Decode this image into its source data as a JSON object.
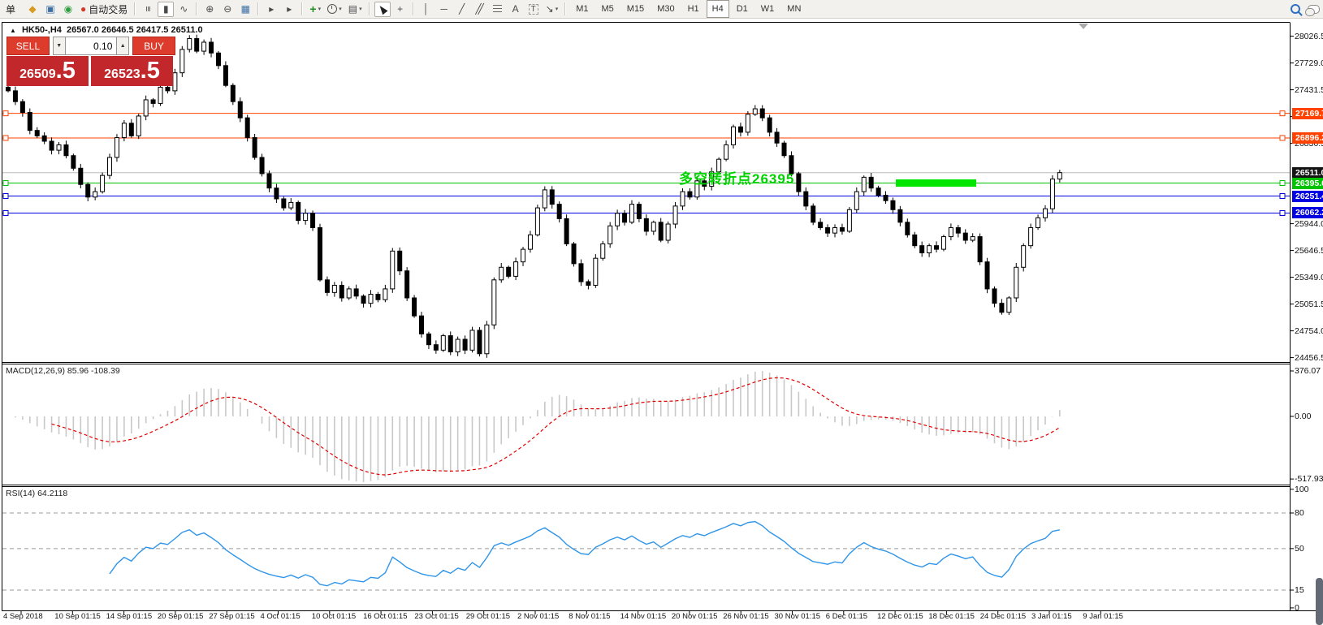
{
  "toolbar": {
    "menu_fragment": "单",
    "auto_trading": "自动交易",
    "timeframes": [
      "M1",
      "M5",
      "M15",
      "M30",
      "H1",
      "H4",
      "D1",
      "W1",
      "MN"
    ],
    "active_timeframe": "H4",
    "items": [
      {
        "name": "menu-fragment",
        "kind": "text",
        "text_key": "menu_fragment"
      },
      {
        "name": "new-order-icon",
        "glyph": "◆",
        "color": "#d79b23"
      },
      {
        "name": "chart-window-icon",
        "glyph": "▣",
        "color": "#3a6ea5"
      },
      {
        "name": "signals-icon",
        "glyph": "◉",
        "color": "#2e9e3f"
      },
      {
        "name": "auto-trading-button",
        "glyph": "●",
        "color": "#d03a2c",
        "label_key": "auto_trading"
      },
      {
        "kind": "sep"
      },
      {
        "name": "bar-chart-icon",
        "glyph": "≡",
        "cls": "rot90"
      },
      {
        "name": "candlestick-chart-icon",
        "glyph": "▮",
        "pressed": true
      },
      {
        "name": "line-chart-icon",
        "glyph": "∿"
      },
      {
        "kind": "sep"
      },
      {
        "name": "zoom-in-icon",
        "glyph": "⊕"
      },
      {
        "name": "zoom-out-icon",
        "glyph": "⊖"
      },
      {
        "name": "tile-windows-icon",
        "glyph": "▦",
        "color": "#3a6ea5"
      },
      {
        "kind": "sep"
      },
      {
        "name": "auto-scroll-icon",
        "glyph": "▸"
      },
      {
        "name": "chart-shift-icon",
        "glyph": "▸"
      },
      {
        "kind": "sep"
      },
      {
        "name": "indicators-button",
        "glyph": "+",
        "color": "#1e8e1e",
        "bold": true,
        "caret": true
      },
      {
        "name": "periods-button",
        "cls": "clockic",
        "caret": true
      },
      {
        "name": "templates-button",
        "glyph": "▤",
        "caret": true
      },
      {
        "kind": "sep"
      },
      {
        "name": "cursor-icon",
        "cls": "cursor-css",
        "pressed": true
      },
      {
        "name": "crosshair-icon",
        "glyph": "+"
      },
      {
        "kind": "sep"
      },
      {
        "name": "vertical-line-tool",
        "glyph": "│"
      },
      {
        "name": "horizontal-line-tool",
        "glyph": "─"
      },
      {
        "name": "trendline-tool",
        "glyph": "╱"
      },
      {
        "name": "channel-tool",
        "glyph": "╱╱",
        "cls": "tight"
      },
      {
        "name": "fibonacci-tool",
        "cls": "fibo"
      },
      {
        "name": "text-tool",
        "glyph": "A"
      },
      {
        "name": "label-tool",
        "glyph": "T",
        "cls": "boxed"
      },
      {
        "name": "arrows-tool",
        "glyph": "↘",
        "caret": true
      },
      {
        "kind": "sep"
      },
      {
        "kind": "timeframes"
      },
      {
        "kind": "spacer"
      },
      {
        "name": "search-icon",
        "cls": "mag"
      },
      {
        "name": "chat-icon",
        "cls": "chat"
      }
    ]
  },
  "chart_header": {
    "symbol": "HK50-,H4",
    "ohlc": "26567.0 26646.5 26417.5 26511.0"
  },
  "trade_panel": {
    "sell_label": "SELL",
    "buy_label": "BUY",
    "volume": "0.10",
    "sell_main": "26509",
    "sell_big": ".5",
    "buy_main": "26523",
    "buy_big": ".5"
  },
  "annotation": {
    "text": "多空转折点26395",
    "color": "#00d300",
    "bar_color": "#00e600"
  },
  "price_axis": {
    "ticks": [
      {
        "label": "28026.5",
        "price": 28026.5
      },
      {
        "label": "27729.0",
        "price": 27729.0
      },
      {
        "label": "27431.5",
        "price": 27431.5
      },
      {
        "label": "27134.0",
        "price": 27134.0
      },
      {
        "label": "26836.5",
        "price": 26836.5
      },
      {
        "label": "25944.0",
        "price": 25944.0
      },
      {
        "label": "25646.5",
        "price": 25646.5
      },
      {
        "label": "25349.0",
        "price": 25349.0
      },
      {
        "label": "25051.5",
        "price": 25051.5
      },
      {
        "label": "24754.0",
        "price": 24754.0
      },
      {
        "label": "24456.5",
        "price": 24456.5
      }
    ],
    "badges": [
      {
        "label": "27169.7",
        "price": 27169.7,
        "bg": "#ff4200",
        "line": "#ff4200",
        "anchors": true,
        "role": "resistance-line"
      },
      {
        "label": "26896.2",
        "price": 26896.2,
        "bg": "#ff4200",
        "line": "#ff4200",
        "anchors": true,
        "role": "resistance-line"
      },
      {
        "label": "26511.0",
        "price": 26511.0,
        "bg": "#141414",
        "line": "#bcbcbc",
        "anchors": false,
        "role": "current-price"
      },
      {
        "label": "26395.6",
        "price": 26395.6,
        "bg": "#00c300",
        "line": "#00c300",
        "anchors": true,
        "role": "pivot-line"
      },
      {
        "label": "26251.4",
        "price": 26251.4,
        "bg": "#0000e0",
        "line": "#0000e0",
        "anchors": true,
        "role": "support-line"
      },
      {
        "label": "26062.2",
        "price": 26062.2,
        "bg": "#0000e0",
        "line": "#0000e0",
        "anchors": true,
        "role": "support-line"
      }
    ]
  },
  "macd_pane": {
    "label": "MACD(12,26,9) 85.96 -108.39",
    "scale": [
      {
        "label": "376.07",
        "value": 376.07
      },
      {
        "label": "0.00",
        "value": 0
      },
      {
        "label": "-517.93",
        "value": -517.93
      }
    ]
  },
  "rsi_pane": {
    "label": "RSI(14) 64.2118",
    "scale": [
      {
        "label": "100",
        "value": 100
      },
      {
        "label": "80",
        "value": 80
      },
      {
        "label": "50",
        "value": 50
      },
      {
        "label": "15",
        "value": 15
      },
      {
        "label": "0",
        "value": 0
      }
    ],
    "grid_levels": [
      80,
      50,
      15
    ]
  },
  "time_axis": [
    "4 Sep 2018",
    "10 Sep 01:15",
    "14 Sep 01:15",
    "20 Sep 01:15",
    "27 Sep 01:15",
    "4 Oct 01:15",
    "10 Oct 01:15",
    "16 Oct 01:15",
    "23 Oct 01:15",
    "29 Oct 01:15",
    "2 Nov 01:15",
    "8 Nov 01:15",
    "14 Nov 01:15",
    "20 Nov 01:15",
    "26 Nov 01:15",
    "30 Nov 01:15",
    "6 Dec 01:15",
    "12 Dec 01:15",
    "18 Dec 01:15",
    "24 Dec 01:15",
    "3 Jan 01:15",
    "9 Jan 01:15"
  ],
  "chart_data": {
    "type": "candlestick",
    "symbol": "HK50-",
    "timeframe": "H4",
    "current_ohlc": {
      "open": 26567.0,
      "high": 26646.5,
      "low": 26417.5,
      "close": 26511.0
    },
    "ylim": [
      24456.5,
      28100
    ],
    "closes": [
      27420,
      27300,
      27180,
      26980,
      26920,
      26860,
      26760,
      26820,
      26700,
      26560,
      26380,
      26240,
      26300,
      26480,
      26680,
      26900,
      27060,
      26920,
      27140,
      27320,
      27280,
      27460,
      27420,
      27620,
      27880,
      28000,
      27860,
      27960,
      27840,
      27700,
      27480,
      27300,
      27120,
      26900,
      26680,
      26500,
      26340,
      26220,
      26120,
      26180,
      25980,
      26060,
      25900,
      25320,
      25180,
      25260,
      25120,
      25220,
      25140,
      25060,
      25160,
      25100,
      25220,
      25640,
      25420,
      25120,
      24920,
      24720,
      24600,
      24540,
      24700,
      24520,
      24660,
      24540,
      24760,
      24500,
      24820,
      25320,
      25460,
      25360,
      25520,
      25660,
      25820,
      26120,
      26320,
      26160,
      26000,
      25720,
      25500,
      25300,
      25260,
      25560,
      25720,
      25920,
      26060,
      25960,
      26160,
      26000,
      25860,
      25960,
      25760,
      25940,
      26140,
      26300,
      26240,
      26420,
      26360,
      26520,
      26660,
      26820,
      27020,
      26960,
      27160,
      27220,
      27120,
      26960,
      26840,
      26700,
      26500,
      26300,
      26140,
      25960,
      25900,
      25840,
      25900,
      25860,
      26100,
      26300,
      26460,
      26340,
      26260,
      26200,
      26100,
      25960,
      25820,
      25700,
      25620,
      25700,
      25660,
      25800,
      25900,
      25840,
      25760,
      25800,
      25520,
      25220,
      25060,
      24960,
      25120,
      25460,
      25700,
      25900,
      26010,
      26110,
      26440,
      26511
    ],
    "horizontal_levels": [
      27169.7,
      26896.2,
      26511.0,
      26395.6,
      26251.4,
      26062.2
    ],
    "indicators": [
      {
        "name": "MACD",
        "params": [
          12,
          26,
          9
        ],
        "current_values": [
          85.96,
          -108.39
        ],
        "scale": [
          -517.93,
          376.07
        ]
      },
      {
        "name": "RSI",
        "params": [
          14
        ],
        "current_value": 64.2118,
        "scale": [
          0,
          100
        ],
        "levels": [
          80,
          50,
          15
        ]
      }
    ]
  }
}
